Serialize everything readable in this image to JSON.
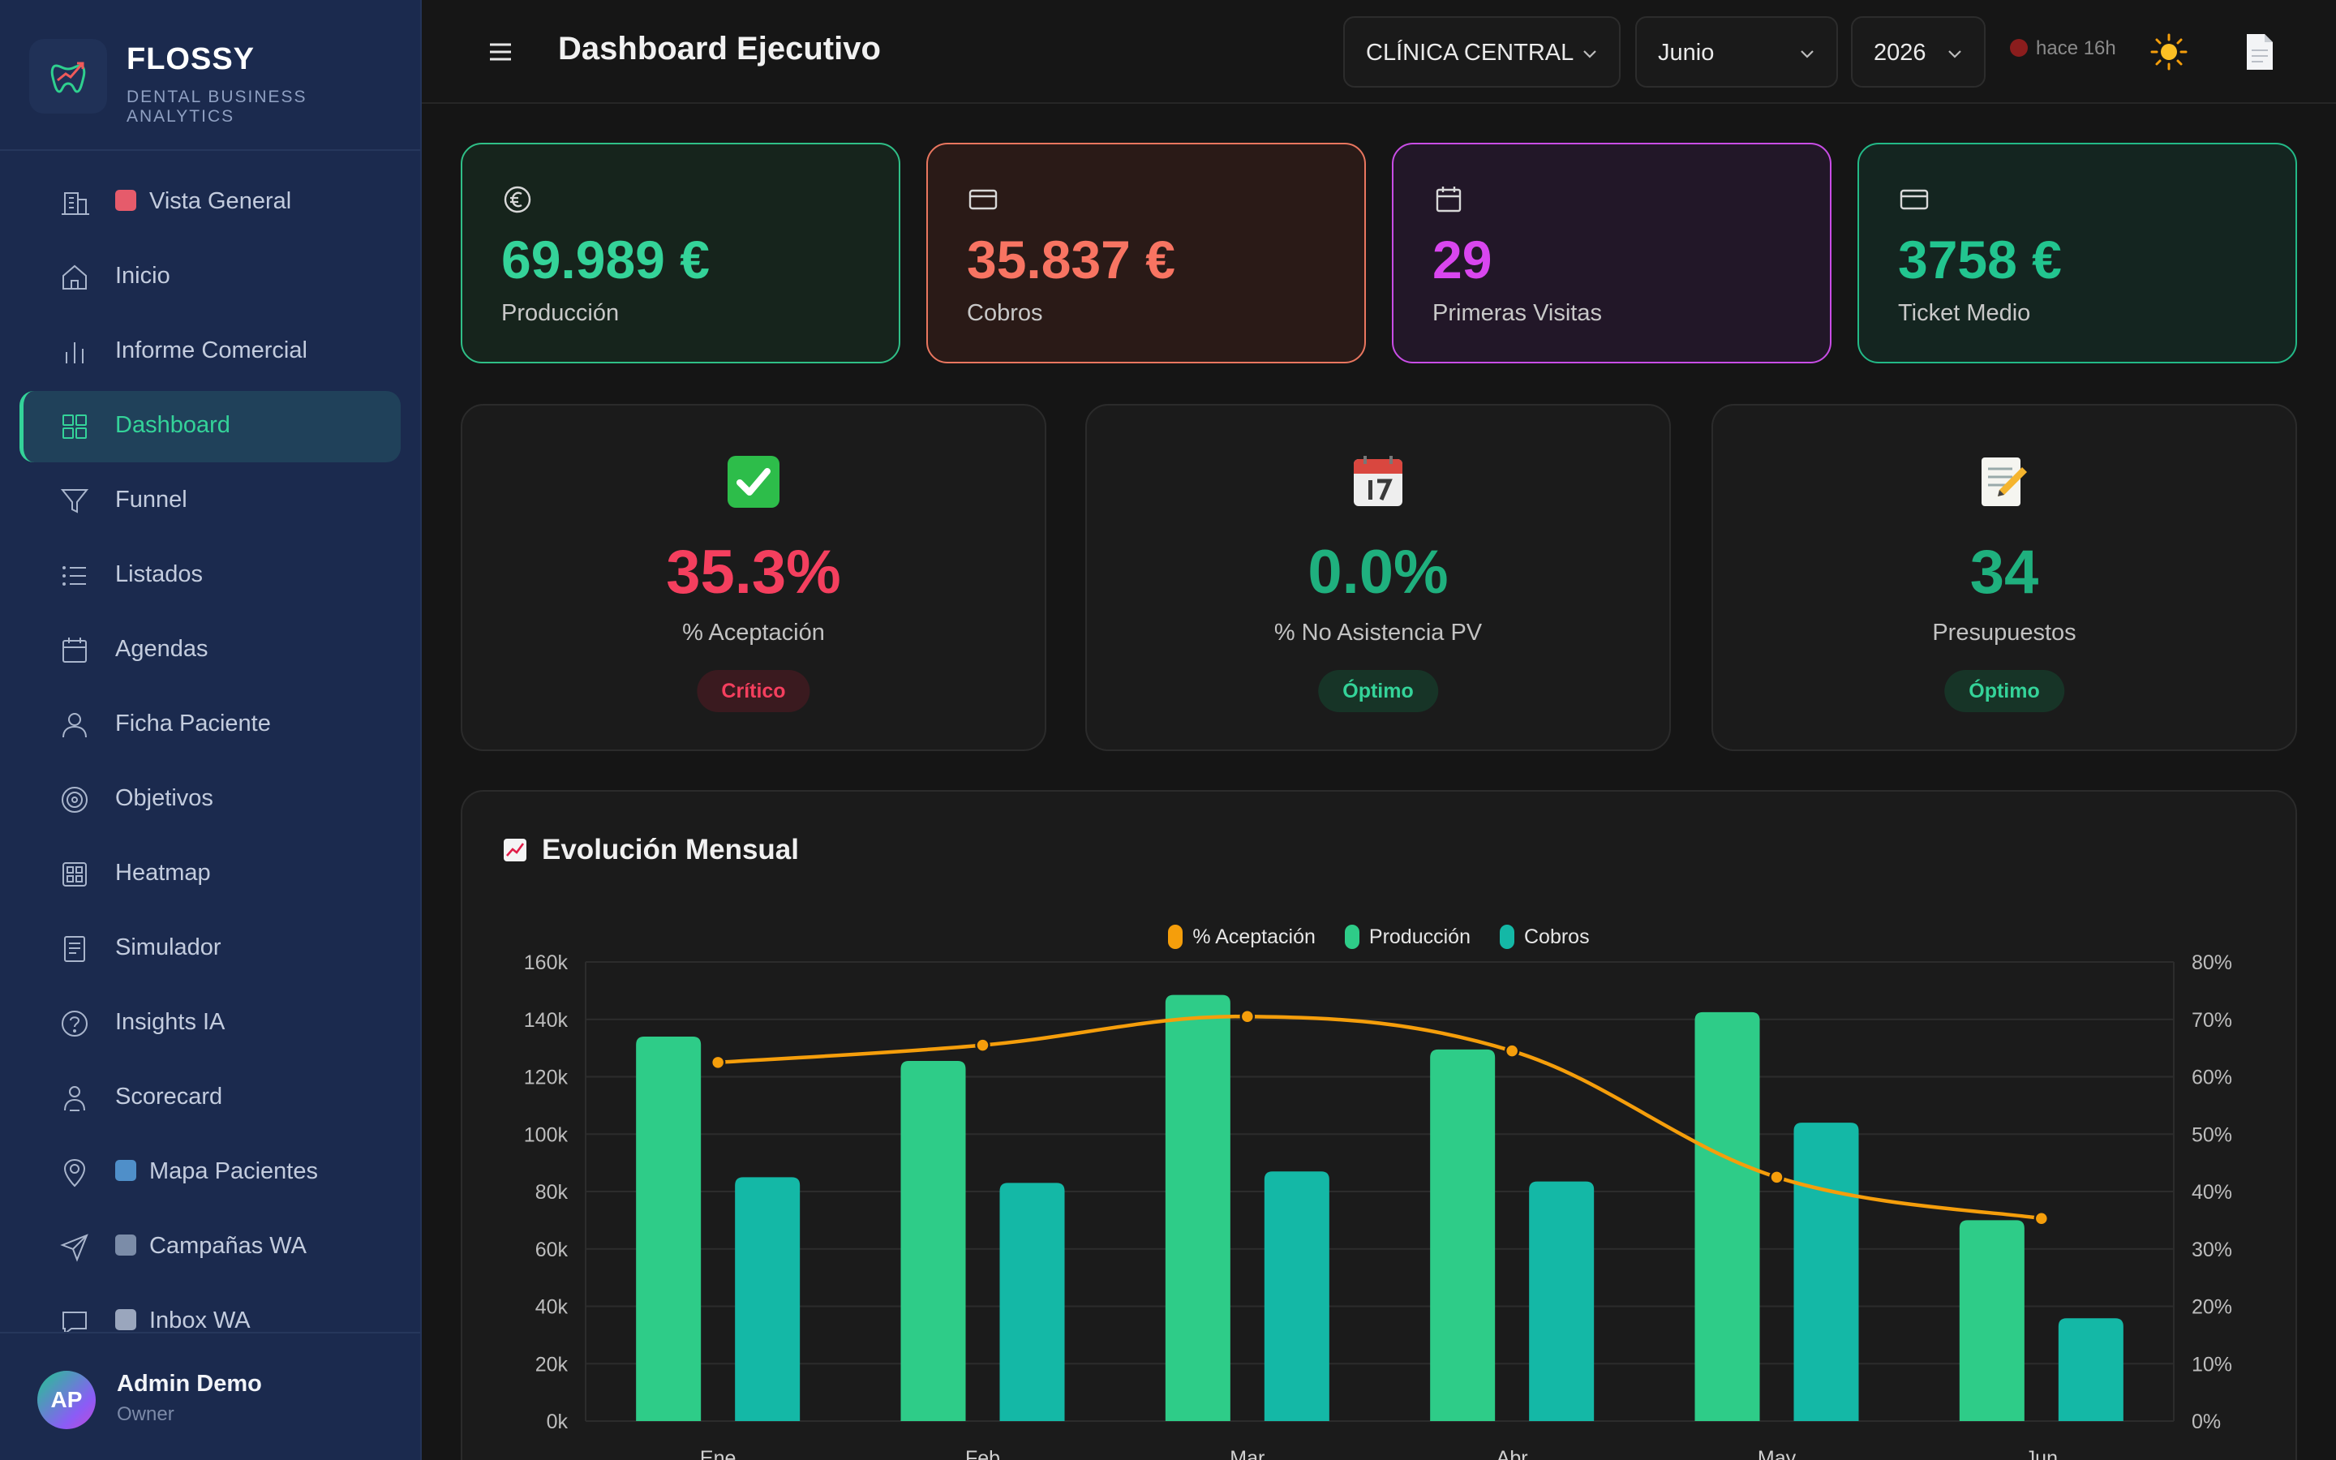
{
  "brand": {
    "name": "FLOSSY",
    "subtitle": "DENTAL BUSINESS ANALYTICS"
  },
  "sidebar": {
    "items": [
      {
        "name": "vista-general",
        "icon": "building-icon",
        "emoji": "🏥",
        "label": "Vista General",
        "active": false
      },
      {
        "name": "inicio",
        "icon": "home-icon",
        "label": "Inicio",
        "active": false
      },
      {
        "name": "informe-comercial",
        "icon": "bar-chart-icon",
        "label": "Informe Comercial",
        "active": false
      },
      {
        "name": "dashboard",
        "icon": "grid-icon",
        "label": "Dashboard",
        "active": true
      },
      {
        "name": "funnel",
        "icon": "filter-icon",
        "label": "Funnel",
        "active": false
      },
      {
        "name": "listados",
        "icon": "list-icon",
        "label": "Listados",
        "active": false
      },
      {
        "name": "agendas",
        "icon": "calendar-icon",
        "label": "Agendas",
        "active": false
      },
      {
        "name": "ficha-paciente",
        "icon": "user-icon",
        "label": "Ficha Paciente",
        "active": false
      },
      {
        "name": "objetivos",
        "icon": "target-icon",
        "label": "Objetivos",
        "active": false
      },
      {
        "name": "heatmap",
        "icon": "heatmap-icon",
        "label": "Heatmap",
        "active": false
      },
      {
        "name": "simulador",
        "icon": "document-icon",
        "label": "Simulador",
        "active": false
      },
      {
        "name": "insights-ia",
        "icon": "help-circle-icon",
        "label": "Insights IA",
        "active": false
      },
      {
        "name": "scorecard",
        "icon": "user-check-icon",
        "label": "Scorecard",
        "active": false
      },
      {
        "name": "mapa-pacientes",
        "icon": "map-pin-icon",
        "emoji": "🗺",
        "label": "Mapa Pacientes",
        "active": false
      },
      {
        "name": "campanas-wa",
        "icon": "send-icon",
        "emoji": "📤",
        "label": "Campañas WA",
        "active": false
      },
      {
        "name": "inbox-wa",
        "icon": "message-icon",
        "emoji": "💬",
        "label": "Inbox WA",
        "active": false
      }
    ]
  },
  "user": {
    "initials": "AP",
    "name": "Admin Demo",
    "role": "Owner"
  },
  "header": {
    "title": "Dashboard Ejecutivo",
    "clinic": "CLÍNICA CENTRAL",
    "month": "Junio",
    "year": "2026",
    "sync": "hace 16h"
  },
  "kpis": [
    {
      "value": "69.989 €",
      "label": "Producción",
      "icon": "euro-icon",
      "color": "#34d399",
      "border": "#2fbf87",
      "bg": "#16241c"
    },
    {
      "value": "35.837 €",
      "label": "Cobros",
      "icon": "credit-card-icon",
      "color": "#f87462",
      "border": "#e9765f",
      "bg": "#2a1a17"
    },
    {
      "value": "29",
      "label": "Primeras Visitas",
      "icon": "calendar-icon",
      "color": "#d946ef",
      "border": "#c94de6",
      "bg": "#221728"
    },
    {
      "value": "3758 €",
      "label": "Ticket Medio",
      "icon": "credit-card-icon",
      "color": "#22c58f",
      "border": "#23b987",
      "bg": "#142520"
    }
  ],
  "metrics": [
    {
      "emoji": "check-mark-icon",
      "value": "35.3%",
      "label": "% Aceptación",
      "badge": "Crítico",
      "color": "#f43f5e",
      "badge_color": "#f43f5e",
      "badge_bg": "#3a1a1f"
    },
    {
      "emoji": "calendar-page-icon",
      "value": "0.0%",
      "label": "% No Asistencia PV",
      "badge": "Óptimo",
      "color": "#1fb07e",
      "badge_color": "#34d399",
      "badge_bg": "#173427"
    },
    {
      "emoji": "memo-icon",
      "value": "34",
      "label": "Presupuestos",
      "badge": "Óptimo",
      "color": "#1fb07e",
      "badge_color": "#34d399",
      "badge_bg": "#173427"
    }
  ],
  "chart": {
    "title": "Evolución Mensual",
    "title_icon": "chart-up-icon",
    "legend": [
      {
        "name": "% Aceptación",
        "color": "#f59e0b"
      },
      {
        "name": "Producción",
        "color": "#2ecc88"
      },
      {
        "name": "Cobros",
        "color": "#14b8a6"
      }
    ]
  },
  "chart_data": {
    "type": "bar",
    "title": "Evolución Mensual",
    "categories": [
      "Ene",
      "Feb",
      "Mar",
      "Abr",
      "May",
      "Jun"
    ],
    "series": [
      {
        "name": "Producción",
        "type": "bar",
        "axis": "left",
        "values": [
          134000,
          125500,
          148500,
          129500,
          142500,
          69989
        ]
      },
      {
        "name": "Cobros",
        "type": "bar",
        "axis": "left",
        "values": [
          85000,
          83000,
          87000,
          83500,
          104000,
          35837
        ]
      },
      {
        "name": "% Aceptación",
        "type": "line",
        "axis": "right",
        "values": [
          62.5,
          65.5,
          70.5,
          64.5,
          42.5,
          35.3
        ]
      }
    ],
    "y_left": {
      "min": 0,
      "max": 160000,
      "ticks": [
        "0k",
        "20k",
        "40k",
        "60k",
        "80k",
        "100k",
        "120k",
        "140k",
        "160k"
      ]
    },
    "y_right": {
      "min": 0,
      "max": 80,
      "ticks": [
        "0%",
        "10%",
        "20%",
        "30%",
        "40%",
        "50%",
        "60%",
        "70%",
        "80%"
      ]
    },
    "grid": true,
    "legend_position": "top-center"
  }
}
